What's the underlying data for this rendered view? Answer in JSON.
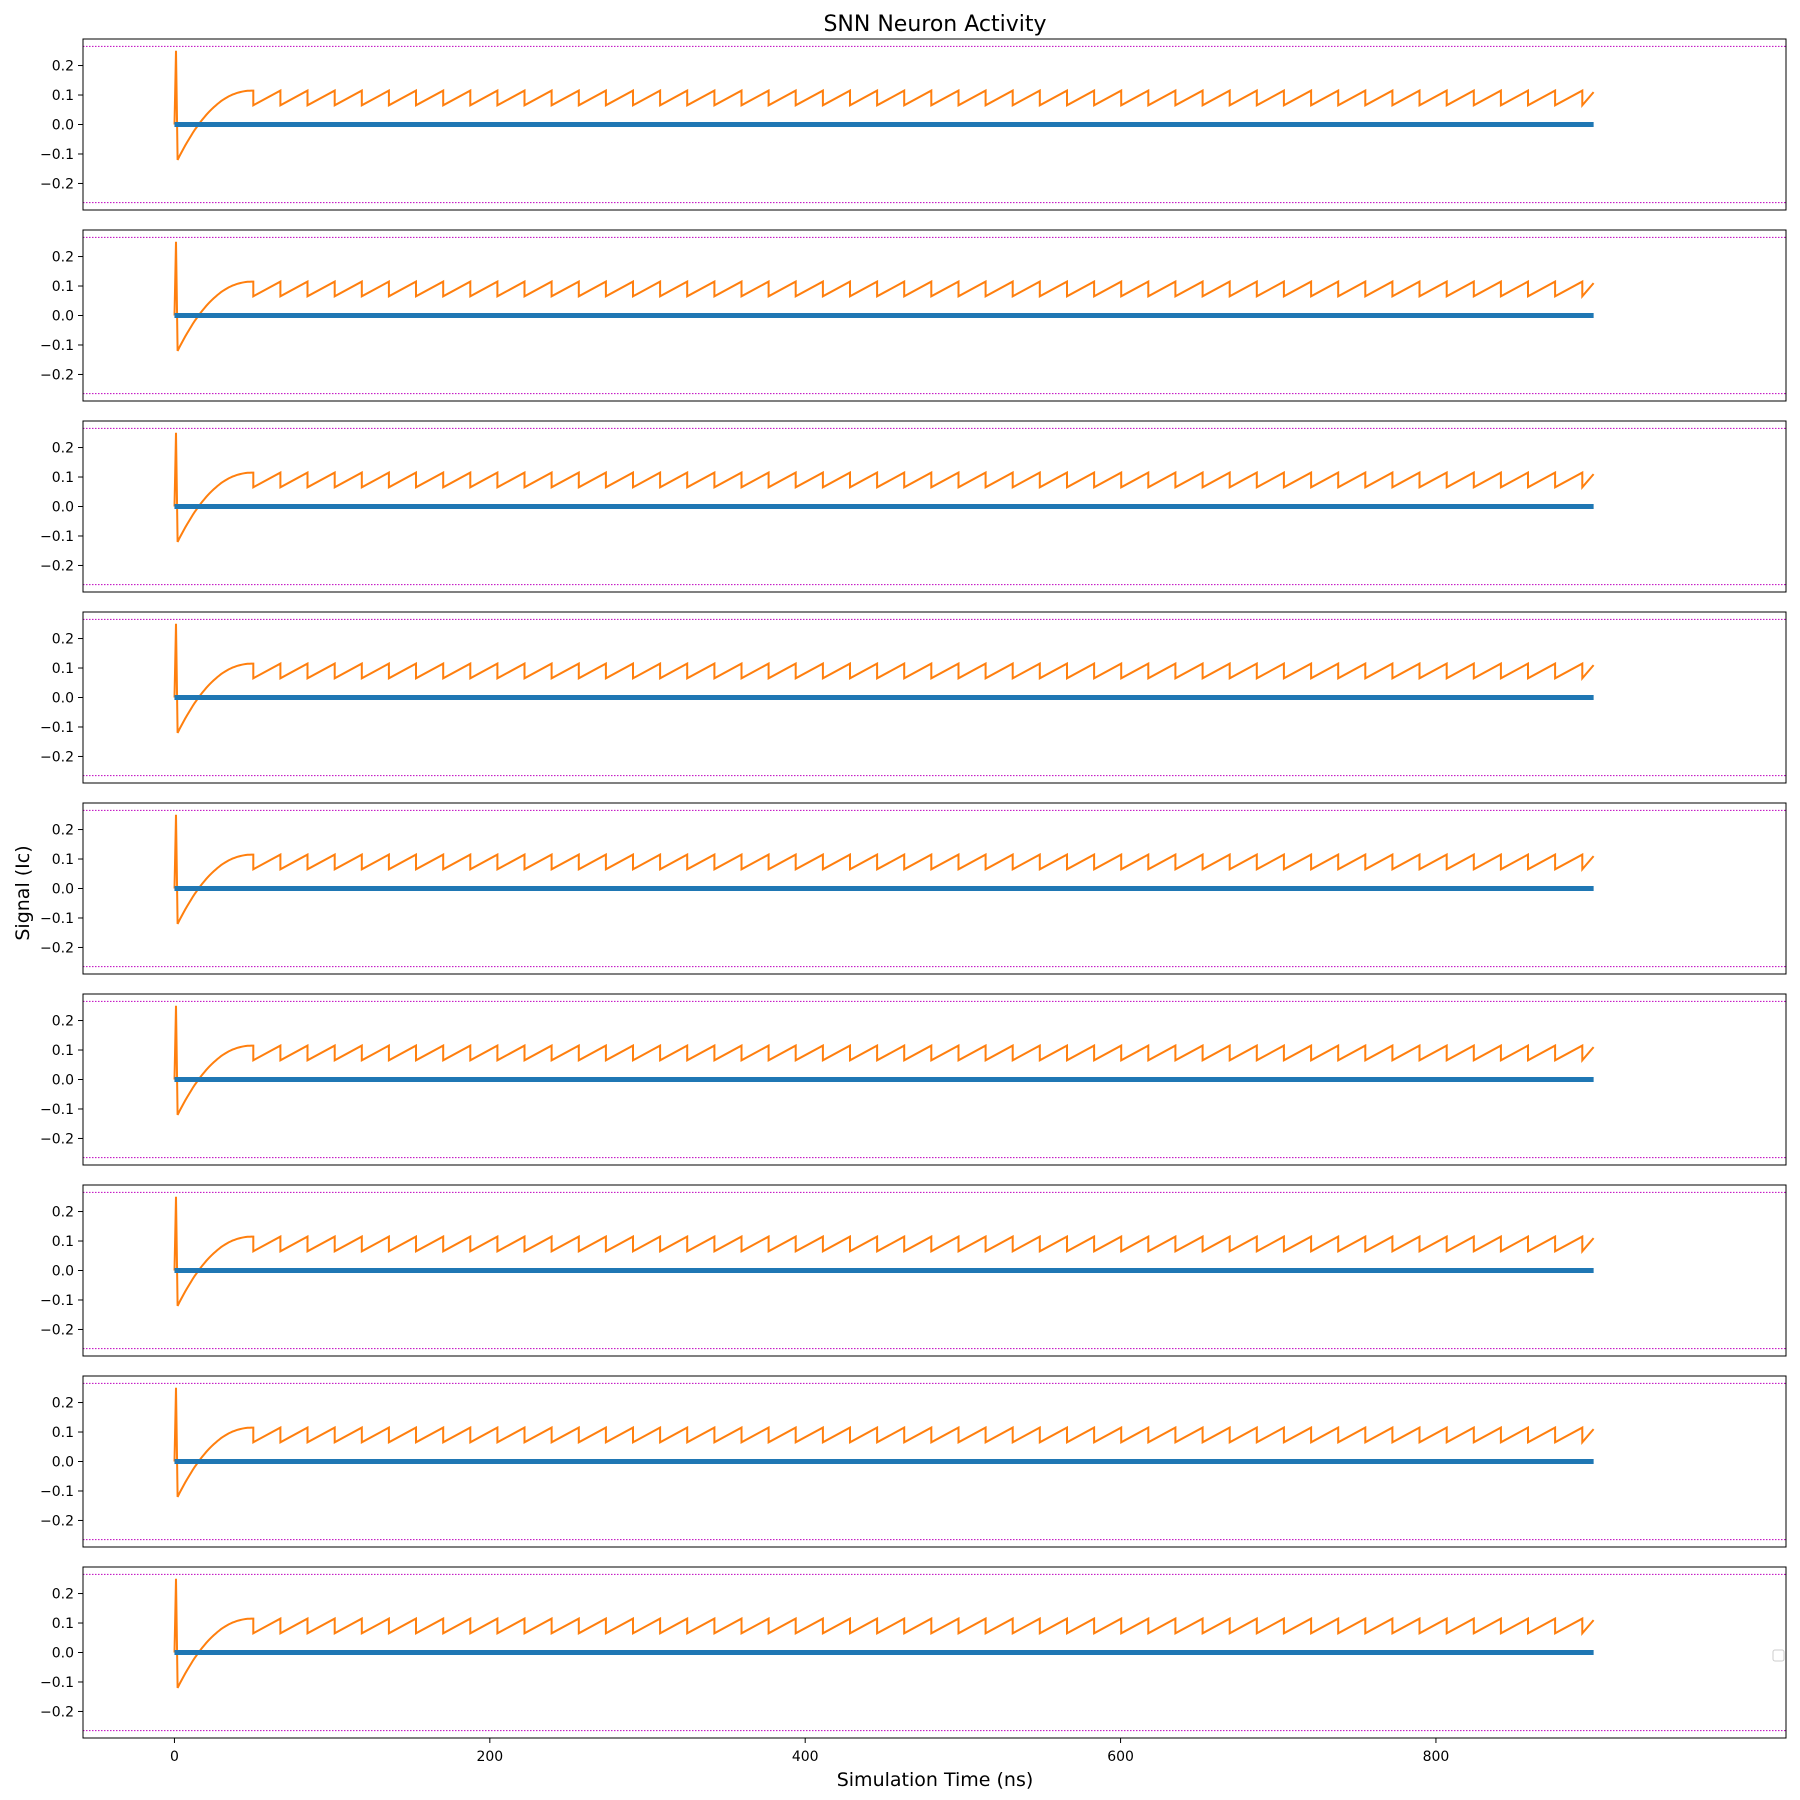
{
  "chart_data": {
    "type": "line",
    "title": "SNN Neuron Activity",
    "xlabel": "Simulation Time (ns)",
    "ylabel": "Signal (Ic)",
    "subplot_count": 9,
    "xlim": [
      -58,
      1022
    ],
    "x_ticks": [
      0,
      200,
      400,
      600,
      800
    ],
    "ylim": [
      -0.29,
      0.29
    ],
    "y_ticks": [
      0.2,
      0.1,
      0.0,
      -0.1,
      -0.2
    ],
    "y_tick_labels": [
      "0.2",
      "0.1",
      "0.0",
      "−0.1",
      "−0.2"
    ],
    "threshold_lines": {
      "values": [
        0.265,
        -0.265
      ],
      "style": "dotted",
      "color": "#bf00bf"
    },
    "legend": {
      "placement": "center-right",
      "entries": []
    },
    "grid": false,
    "series": [
      {
        "role": "spike_output",
        "color": "#1f77b4",
        "style": "thick",
        "x": [
          0,
          900
        ],
        "y": [
          0,
          0
        ]
      },
      {
        "role": "membrane_signal",
        "color": "#ff7f0e",
        "initial_spike": {
          "x": 1,
          "y": 0.25
        },
        "initial_dip": {
          "x": 2,
          "y": -0.12
        },
        "first_crossing_x": 50,
        "period": 17.2,
        "reset_value": 0.065,
        "peak_value": 0.115,
        "end": {
          "x": 900,
          "y": 0.11
        }
      }
    ]
  }
}
